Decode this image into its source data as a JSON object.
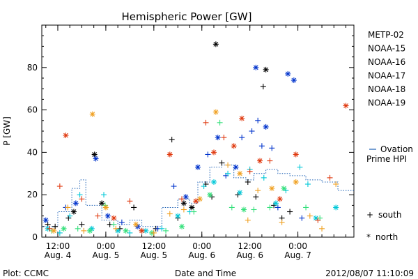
{
  "chart_data": {
    "type": "scatter",
    "title": "Hemispheric Power [GW]",
    "xlabel": "Date and Time",
    "ylabel": "P [GW]",
    "xlim": [
      "2012-08-04T08:00",
      "2012-08-07T14:00"
    ],
    "ylim": [
      0,
      100
    ],
    "yticks": [
      0,
      20,
      40,
      60,
      80
    ],
    "xticks": [
      {
        "t": "2012-08-04T12:00",
        "line1": "12:00",
        "line2": "Aug. 4"
      },
      {
        "t": "2012-08-05T00:00",
        "line1": "0:00",
        "line2": "Aug. 5"
      },
      {
        "t": "2012-08-05T12:00",
        "line1": "12:00",
        "line2": "Aug. 5"
      },
      {
        "t": "2012-08-06T00:00",
        "line1": "0:00",
        "line2": "Aug. 6"
      },
      {
        "t": "2012-08-06T12:00",
        "line1": "12:00",
        "line2": "Aug. 6"
      },
      {
        "t": "2012-08-07T00:00",
        "line1": "0:00",
        "line2": "Aug. 7"
      }
    ],
    "grid": false,
    "legend_position": "right",
    "hemisphere_legend": {
      "south": "south",
      "north": "north",
      "south_marker": "+",
      "north_marker": "*"
    },
    "series": [
      {
        "name": "METP-02",
        "color": "#000000",
        "points": [
          {
            "t": "2012-08-04T09:30",
            "y": 6,
            "h": "S"
          },
          {
            "t": "2012-08-04T11:20",
            "y": 5,
            "h": "S"
          },
          {
            "t": "2012-08-04T14:40",
            "y": 9,
            "h": "S"
          },
          {
            "t": "2012-08-04T16:00",
            "y": 12,
            "h": "N"
          },
          {
            "t": "2012-08-04T18:00",
            "y": 6,
            "h": "S"
          },
          {
            "t": "2012-08-04T21:10",
            "y": 39,
            "h": "N"
          },
          {
            "t": "2012-08-04T23:00",
            "y": 16,
            "h": "N"
          },
          {
            "t": "2012-08-05T01:00",
            "y": 6,
            "h": "S"
          },
          {
            "t": "2012-08-05T03:30",
            "y": 4,
            "h": "S"
          },
          {
            "t": "2012-08-05T07:00",
            "y": 14,
            "h": "S"
          },
          {
            "t": "2012-08-05T09:00",
            "y": 3,
            "h": "S"
          },
          {
            "t": "2012-08-05T12:30",
            "y": 4,
            "h": "S"
          },
          {
            "t": "2012-08-05T16:30",
            "y": 46,
            "h": "S"
          },
          {
            "t": "2012-08-05T18:00",
            "y": 9,
            "h": "S"
          },
          {
            "t": "2012-08-05T19:30",
            "y": 16,
            "h": "N"
          },
          {
            "t": "2012-08-05T21:30",
            "y": 14,
            "h": "N"
          },
          {
            "t": "2012-08-06T01:00",
            "y": 25,
            "h": "S"
          },
          {
            "t": "2012-08-06T02:30",
            "y": 19,
            "h": "S"
          },
          {
            "t": "2012-08-06T03:30",
            "y": 91,
            "h": "N"
          },
          {
            "t": "2012-08-06T05:00",
            "y": 35,
            "h": "S"
          },
          {
            "t": "2012-08-06T09:00",
            "y": 20,
            "h": "S"
          },
          {
            "t": "2012-08-06T11:30",
            "y": 26,
            "h": "S"
          },
          {
            "t": "2012-08-06T13:30",
            "y": 19,
            "h": "S"
          },
          {
            "t": "2012-08-06T15:20",
            "y": 71,
            "h": "S"
          },
          {
            "t": "2012-08-06T16:00",
            "y": 79,
            "h": "N"
          },
          {
            "t": "2012-08-06T18:00",
            "y": 15,
            "h": "S"
          },
          {
            "t": "2012-08-06T20:00",
            "y": 9,
            "h": "S"
          },
          {
            "t": "2012-08-06T22:00",
            "y": 12,
            "h": "S"
          }
        ]
      },
      {
        "name": "NOAA-15",
        "color": "#0033cc",
        "points": [
          {
            "t": "2012-08-04T09:00",
            "y": 8,
            "h": "N"
          },
          {
            "t": "2012-08-04T14:00",
            "y": 14,
            "h": "S"
          },
          {
            "t": "2012-08-04T16:30",
            "y": 16,
            "h": "N"
          },
          {
            "t": "2012-08-04T21:30",
            "y": 37,
            "h": "N"
          },
          {
            "t": "2012-08-05T00:30",
            "y": 10,
            "h": "N"
          },
          {
            "t": "2012-08-05T04:00",
            "y": 7,
            "h": "S"
          },
          {
            "t": "2012-08-05T08:00",
            "y": 5,
            "h": "N"
          },
          {
            "t": "2012-08-05T13:00",
            "y": 4,
            "h": "S"
          },
          {
            "t": "2012-08-05T17:00",
            "y": 24,
            "h": "S"
          },
          {
            "t": "2012-08-05T20:00",
            "y": 19,
            "h": "N"
          },
          {
            "t": "2012-08-05T23:00",
            "y": 33,
            "h": "N"
          },
          {
            "t": "2012-08-06T01:30",
            "y": 39,
            "h": "S"
          },
          {
            "t": "2012-08-06T04:00",
            "y": 47,
            "h": "N"
          },
          {
            "t": "2012-08-06T06:00",
            "y": 29,
            "h": "S"
          },
          {
            "t": "2012-08-06T08:30",
            "y": 33,
            "h": "N"
          },
          {
            "t": "2012-08-06T10:00",
            "y": 47,
            "h": "S"
          },
          {
            "t": "2012-08-06T12:30",
            "y": 50,
            "h": "S"
          },
          {
            "t": "2012-08-06T13:30",
            "y": 80,
            "h": "N"
          },
          {
            "t": "2012-08-06T14:00",
            "y": 55,
            "h": "S"
          },
          {
            "t": "2012-08-06T15:00",
            "y": 43,
            "h": "S"
          },
          {
            "t": "2012-08-06T16:00",
            "y": 52,
            "h": "N"
          },
          {
            "t": "2012-08-06T17:30",
            "y": 42,
            "h": "S"
          },
          {
            "t": "2012-08-06T19:00",
            "y": 14,
            "h": "S"
          },
          {
            "t": "2012-08-06T21:30",
            "y": 77,
            "h": "N"
          },
          {
            "t": "2012-08-06T23:00",
            "y": 74,
            "h": "N"
          },
          {
            "t": "2012-08-07T01:00",
            "y": 9,
            "h": "S"
          }
        ]
      },
      {
        "name": "NOAA-16",
        "color": "#00c8d8",
        "points": [
          {
            "t": "2012-08-04T09:30",
            "y": 4,
            "h": "N"
          },
          {
            "t": "2012-08-04T12:30",
            "y": 2,
            "h": "S"
          },
          {
            "t": "2012-08-04T15:00",
            "y": 10,
            "h": "S"
          },
          {
            "t": "2012-08-04T17:30",
            "y": 20,
            "h": "S"
          },
          {
            "t": "2012-08-04T20:30",
            "y": 4,
            "h": "N"
          },
          {
            "t": "2012-08-04T23:30",
            "y": 20,
            "h": "S"
          },
          {
            "t": "2012-08-05T03:00",
            "y": 3,
            "h": "N"
          },
          {
            "t": "2012-08-05T06:00",
            "y": 2,
            "h": "S"
          },
          {
            "t": "2012-08-05T10:00",
            "y": 3,
            "h": "N"
          },
          {
            "t": "2012-08-05T14:00",
            "y": 4,
            "h": "S"
          },
          {
            "t": "2012-08-05T18:00",
            "y": 10,
            "h": "N"
          },
          {
            "t": "2012-08-05T21:00",
            "y": 12,
            "h": "S"
          },
          {
            "t": "2012-08-06T00:30",
            "y": 24,
            "h": "S"
          },
          {
            "t": "2012-08-06T03:00",
            "y": 26,
            "h": "N"
          },
          {
            "t": "2012-08-06T06:30",
            "y": 30,
            "h": "S"
          },
          {
            "t": "2012-08-06T09:30",
            "y": 21,
            "h": "N"
          },
          {
            "t": "2012-08-06T12:00",
            "y": 32,
            "h": "S"
          },
          {
            "t": "2012-08-06T15:30",
            "y": 28,
            "h": "S"
          },
          {
            "t": "2012-08-06T18:30",
            "y": 16,
            "h": "N"
          },
          {
            "t": "2012-08-06T21:00",
            "y": 22,
            "h": "S"
          },
          {
            "t": "2012-08-07T00:30",
            "y": 33,
            "h": "S"
          },
          {
            "t": "2012-08-07T02:30",
            "y": 25,
            "h": "S"
          },
          {
            "t": "2012-08-07T04:30",
            "y": 9,
            "h": "N"
          },
          {
            "t": "2012-08-07T09:30",
            "y": 14,
            "h": "N"
          }
        ]
      },
      {
        "name": "NOAA-17",
        "color": "#33e07a",
        "points": [
          {
            "t": "2012-08-04T10:30",
            "y": 3,
            "h": "S"
          },
          {
            "t": "2012-08-04T13:30",
            "y": 4,
            "h": "N"
          },
          {
            "t": "2012-08-04T17:00",
            "y": 4,
            "h": "S"
          },
          {
            "t": "2012-08-04T20:00",
            "y": 3,
            "h": "N"
          },
          {
            "t": "2012-08-04T23:50",
            "y": 15,
            "h": "S"
          },
          {
            "t": "2012-08-05T02:00",
            "y": 6,
            "h": "S"
          },
          {
            "t": "2012-08-05T05:00",
            "y": 3,
            "h": "N"
          },
          {
            "t": "2012-08-05T11:30",
            "y": 2,
            "h": "N"
          },
          {
            "t": "2012-08-05T15:00",
            "y": 3,
            "h": "S"
          },
          {
            "t": "2012-08-05T19:00",
            "y": 5,
            "h": "N"
          },
          {
            "t": "2012-08-05T22:00",
            "y": 12,
            "h": "S"
          },
          {
            "t": "2012-08-06T02:00",
            "y": 20,
            "h": "N"
          },
          {
            "t": "2012-08-06T04:30",
            "y": 54,
            "h": "S"
          },
          {
            "t": "2012-08-06T07:30",
            "y": 14,
            "h": "S"
          },
          {
            "t": "2012-08-06T10:30",
            "y": 13,
            "h": "N"
          },
          {
            "t": "2012-08-06T13:00",
            "y": 13,
            "h": "S"
          },
          {
            "t": "2012-08-06T17:00",
            "y": 14,
            "h": "S"
          },
          {
            "t": "2012-08-06T20:30",
            "y": 23,
            "h": "N"
          },
          {
            "t": "2012-08-07T02:00",
            "y": 14,
            "h": "S"
          },
          {
            "t": "2012-08-07T05:30",
            "y": 9,
            "h": "S"
          }
        ]
      },
      {
        "name": "NOAA-18",
        "color": "#f0a020",
        "points": [
          {
            "t": "2012-08-04T11:00",
            "y": 3,
            "h": "N"
          },
          {
            "t": "2012-08-04T14:30",
            "y": 14,
            "h": "S"
          },
          {
            "t": "2012-08-04T18:30",
            "y": 3,
            "h": "S"
          },
          {
            "t": "2012-08-04T20:40",
            "y": 58,
            "h": "N"
          },
          {
            "t": "2012-08-05T00:00",
            "y": 14,
            "h": "N"
          },
          {
            "t": "2012-08-05T02:30",
            "y": 4,
            "h": "S"
          },
          {
            "t": "2012-08-05T07:30",
            "y": 6,
            "h": "N"
          },
          {
            "t": "2012-08-05T12:00",
            "y": 2,
            "h": "S"
          },
          {
            "t": "2012-08-05T16:00",
            "y": 11,
            "h": "S"
          },
          {
            "t": "2012-08-05T19:30",
            "y": 13,
            "h": "S"
          },
          {
            "t": "2012-08-05T23:30",
            "y": 18,
            "h": "N"
          },
          {
            "t": "2012-08-06T03:30",
            "y": 59,
            "h": "N"
          },
          {
            "t": "2012-08-06T06:30",
            "y": 34,
            "h": "S"
          },
          {
            "t": "2012-08-06T09:30",
            "y": 30,
            "h": "N"
          },
          {
            "t": "2012-08-06T11:30",
            "y": 8,
            "h": "S"
          },
          {
            "t": "2012-08-06T14:00",
            "y": 22,
            "h": "S"
          },
          {
            "t": "2012-08-06T17:30",
            "y": 23,
            "h": "N"
          },
          {
            "t": "2012-08-06T20:00",
            "y": 7,
            "h": "S"
          },
          {
            "t": "2012-08-06T23:30",
            "y": 26,
            "h": "N"
          },
          {
            "t": "2012-08-07T03:00",
            "y": 10,
            "h": "S"
          },
          {
            "t": "2012-08-07T06:00",
            "y": 4,
            "h": "S"
          },
          {
            "t": "2012-08-07T09:30",
            "y": 25,
            "h": "S"
          }
        ]
      },
      {
        "name": "NOAA-19",
        "color": "#e03a10",
        "points": [
          {
            "t": "2012-08-04T10:00",
            "y": 4,
            "h": "S"
          },
          {
            "t": "2012-08-04T12:30",
            "y": 24,
            "h": "S"
          },
          {
            "t": "2012-08-04T14:00",
            "y": 48,
            "h": "N"
          },
          {
            "t": "2012-08-04T18:00",
            "y": 18,
            "h": "S"
          },
          {
            "t": "2012-08-04T22:00",
            "y": 10,
            "h": "S"
          },
          {
            "t": "2012-08-05T02:00",
            "y": 9,
            "h": "N"
          },
          {
            "t": "2012-08-05T06:00",
            "y": 17,
            "h": "S"
          },
          {
            "t": "2012-08-05T09:00",
            "y": 3,
            "h": "N"
          },
          {
            "t": "2012-08-05T16:00",
            "y": 39,
            "h": "N"
          },
          {
            "t": "2012-08-05T19:00",
            "y": 18,
            "h": "S"
          },
          {
            "t": "2012-08-05T22:30",
            "y": 17,
            "h": "N"
          },
          {
            "t": "2012-08-06T01:00",
            "y": 54,
            "h": "S"
          },
          {
            "t": "2012-08-06T03:00",
            "y": 40,
            "h": "N"
          },
          {
            "t": "2012-08-06T05:30",
            "y": 47,
            "h": "S"
          },
          {
            "t": "2012-08-06T08:00",
            "y": 43,
            "h": "N"
          },
          {
            "t": "2012-08-06T10:00",
            "y": 56,
            "h": "N"
          },
          {
            "t": "2012-08-06T12:00",
            "y": 31,
            "h": "S"
          },
          {
            "t": "2012-08-06T14:30",
            "y": 36,
            "h": "N"
          },
          {
            "t": "2012-08-06T17:00",
            "y": 36,
            "h": "S"
          },
          {
            "t": "2012-08-06T19:30",
            "y": 18,
            "h": "N"
          },
          {
            "t": "2012-08-06T23:30",
            "y": 39,
            "h": "N"
          },
          {
            "t": "2012-08-07T05:00",
            "y": 8,
            "h": "S"
          },
          {
            "t": "2012-08-07T08:00",
            "y": 28,
            "h": "S"
          },
          {
            "t": "2012-08-07T12:00",
            "y": 62,
            "h": "N"
          }
        ]
      }
    ],
    "ovation": {
      "label_line1": "Ovation",
      "label_line2": "Prime HPI",
      "color": "#1a5fb4",
      "step_points": [
        {
          "t": "2012-08-04T08:00",
          "y": 5
        },
        {
          "t": "2012-08-04T12:00",
          "y": 12
        },
        {
          "t": "2012-08-04T15:30",
          "y": 23
        },
        {
          "t": "2012-08-04T17:30",
          "y": 27
        },
        {
          "t": "2012-08-04T19:00",
          "y": 15
        },
        {
          "t": "2012-08-04T23:00",
          "y": 8
        },
        {
          "t": "2012-08-05T03:00",
          "y": 6
        },
        {
          "t": "2012-08-05T06:00",
          "y": 8
        },
        {
          "t": "2012-08-05T09:00",
          "y": 5
        },
        {
          "t": "2012-08-05T14:00",
          "y": 14
        },
        {
          "t": "2012-08-05T18:00",
          "y": 18
        },
        {
          "t": "2012-08-05T21:00",
          "y": 16
        },
        {
          "t": "2012-08-05T23:00",
          "y": 26
        },
        {
          "t": "2012-08-06T02:00",
          "y": 33
        },
        {
          "t": "2012-08-06T05:00",
          "y": 34
        },
        {
          "t": "2012-08-06T08:00",
          "y": 28
        },
        {
          "t": "2012-08-06T11:00",
          "y": 27
        },
        {
          "t": "2012-08-06T13:00",
          "y": 30
        },
        {
          "t": "2012-08-06T16:00",
          "y": 32
        },
        {
          "t": "2012-08-06T19:00",
          "y": 30
        },
        {
          "t": "2012-08-06T22:00",
          "y": 29
        },
        {
          "t": "2012-08-07T02:00",
          "y": 27
        },
        {
          "t": "2012-08-07T06:00",
          "y": 26
        },
        {
          "t": "2012-08-07T10:00",
          "y": 22
        },
        {
          "t": "2012-08-07T14:00",
          "y": 22
        }
      ]
    },
    "footer": {
      "left": "Plot: CCMC",
      "right": "2012/08/07 11:10:09"
    }
  }
}
